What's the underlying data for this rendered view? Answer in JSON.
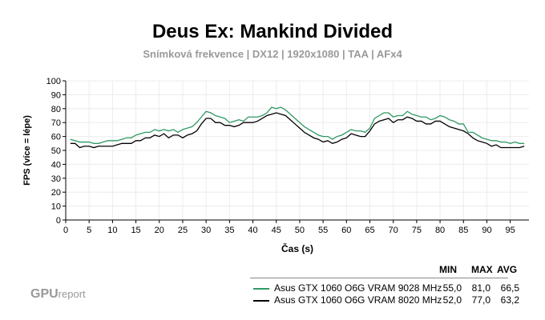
{
  "chart_data": {
    "type": "line",
    "title": "Deus Ex: Mankind Divided",
    "subtitle": "Snímková frekvence | DX12 | 1920x1080 | TAA | AFx4",
    "xlabel": "Čas (s)",
    "ylabel": "FPS (více = lépe)",
    "xlim": [
      0,
      99
    ],
    "ylim": [
      0,
      100
    ],
    "xticks": [
      0,
      5,
      10,
      15,
      20,
      25,
      30,
      35,
      40,
      45,
      50,
      55,
      60,
      65,
      70,
      75,
      80,
      85,
      90,
      95
    ],
    "yticks": [
      0,
      10,
      20,
      30,
      40,
      50,
      60,
      70,
      80,
      90,
      100
    ],
    "grid": true,
    "legend_position": "bottom-right",
    "x": [
      1,
      2,
      3,
      4,
      5,
      6,
      7,
      8,
      9,
      10,
      11,
      12,
      13,
      14,
      15,
      16,
      17,
      18,
      19,
      20,
      21,
      22,
      23,
      24,
      25,
      26,
      27,
      28,
      29,
      30,
      31,
      32,
      33,
      34,
      35,
      36,
      37,
      38,
      39,
      40,
      41,
      42,
      43,
      44,
      45,
      46,
      47,
      48,
      49,
      50,
      51,
      52,
      53,
      54,
      55,
      56,
      57,
      58,
      59,
      60,
      61,
      62,
      63,
      64,
      65,
      66,
      67,
      68,
      69,
      70,
      71,
      72,
      73,
      74,
      75,
      76,
      77,
      78,
      79,
      80,
      81,
      82,
      83,
      84,
      85,
      86,
      87,
      88,
      89,
      90,
      91,
      92,
      93,
      94,
      95,
      96,
      97,
      98
    ],
    "series": [
      {
        "name": "Asus GTX 1060 O6G VRAM 9028 MHz",
        "color": "#2e9a62",
        "min": "55,0",
        "max": "81,0",
        "avg": "66,5",
        "values": [
          58,
          57,
          56,
          56,
          56,
          55,
          55,
          56,
          57,
          57,
          57,
          58,
          59,
          59,
          61,
          62,
          63,
          63,
          65,
          64,
          65,
          64,
          65,
          63,
          65,
          66,
          67,
          70,
          74,
          78,
          77,
          75,
          74,
          73,
          70,
          71,
          72,
          71,
          74,
          74,
          74,
          75,
          77,
          81,
          80,
          81,
          79,
          76,
          73,
          70,
          67,
          65,
          63,
          61,
          60,
          60,
          58,
          60,
          61,
          63,
          65,
          64,
          64,
          63,
          66,
          73,
          75,
          77,
          77,
          74,
          75,
          75,
          78,
          76,
          75,
          74,
          74,
          72,
          73,
          75,
          74,
          72,
          71,
          69,
          69,
          63,
          63,
          61,
          59,
          58,
          57,
          57,
          56,
          56,
          55,
          56,
          55,
          55
        ]
      },
      {
        "name": "Asus GTX 1060 O6G VRAM 8020 MHz",
        "color": "#000000",
        "min": "52,0",
        "max": "77,0",
        "avg": "63,2",
        "values": [
          55,
          55,
          52,
          53,
          53,
          52,
          53,
          53,
          53,
          53,
          54,
          55,
          55,
          55,
          57,
          57,
          59,
          59,
          61,
          60,
          62,
          59,
          61,
          61,
          59,
          61,
          62,
          64,
          69,
          73,
          73,
          70,
          70,
          68,
          68,
          67,
          68,
          70,
          70,
          70,
          71,
          73,
          75,
          76,
          77,
          76,
          75,
          72,
          69,
          66,
          63,
          61,
          59,
          58,
          56,
          57,
          55,
          56,
          58,
          59,
          62,
          61,
          60,
          60,
          64,
          69,
          71,
          72,
          73,
          70,
          72,
          72,
          74,
          73,
          71,
          71,
          69,
          69,
          71,
          71,
          69,
          67,
          66,
          65,
          64,
          62,
          59,
          57,
          56,
          55,
          53,
          54,
          52,
          52,
          52,
          52,
          52,
          53
        ]
      }
    ],
    "stat_headers": [
      "MIN",
      "MAX",
      "AVG"
    ]
  },
  "logo": {
    "main": "GPU",
    "sub": "report"
  }
}
